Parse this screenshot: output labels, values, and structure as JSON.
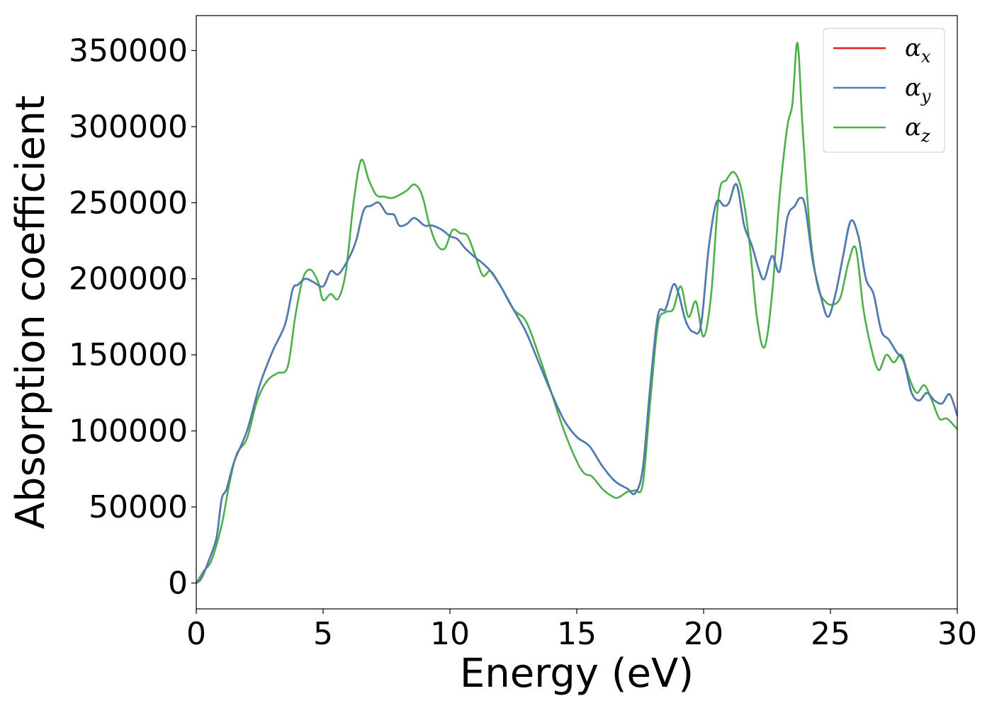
{
  "chart_data": {
    "type": "line",
    "xlabel": "Energy (eV)",
    "ylabel": "Absorption coefficient",
    "xlim": [
      0,
      30
    ],
    "ylim": [
      -17000,
      373000
    ],
    "xticks": [
      0,
      5,
      10,
      15,
      20,
      25,
      30
    ],
    "yticks": [
      0,
      50000,
      100000,
      150000,
      200000,
      250000,
      300000,
      350000
    ],
    "grid": false,
    "legend_position": "top-right",
    "series": [
      {
        "name": "αx",
        "label_base": "α",
        "label_sub": "x",
        "color": "#e41a1c",
        "x": [
          0,
          0.2,
          0.5,
          0.8,
          1.0,
          1.2,
          1.5,
          2.0,
          2.5,
          3.0,
          3.5,
          3.8,
          4.0,
          4.3,
          4.6,
          5.0,
          5.3,
          5.6,
          6.0,
          6.3,
          6.6,
          6.9,
          7.2,
          7.5,
          7.8,
          8.0,
          8.3,
          8.6,
          9.0,
          9.3,
          9.7,
          10.0,
          10.3,
          10.6,
          11.0,
          11.3,
          11.6,
          12.0,
          12.5,
          13.0,
          13.5,
          14.0,
          14.5,
          15.0,
          15.5,
          16.0,
          16.5,
          17.0,
          17.3,
          17.6,
          17.9,
          18.2,
          18.5,
          18.8,
          19.0,
          19.3,
          19.6,
          19.9,
          20.2,
          20.5,
          20.8,
          21.0,
          21.3,
          21.6,
          21.9,
          22.2,
          22.4,
          22.7,
          23.0,
          23.3,
          23.6,
          23.8,
          24.0,
          24.3,
          24.6,
          24.9,
          25.2,
          25.5,
          25.8,
          26.1,
          26.4,
          26.7,
          27.0,
          27.3,
          27.6,
          27.9,
          28.2,
          28.5,
          28.8,
          29.1,
          29.4,
          29.7,
          30.0
        ],
        "y": [
          0,
          3000,
          15000,
          30000,
          55000,
          62000,
          80000,
          100000,
          130000,
          152000,
          170000,
          193000,
          196000,
          200000,
          198000,
          195000,
          205000,
          203000,
          213000,
          225000,
          245000,
          248000,
          250000,
          243000,
          242000,
          235000,
          236000,
          240000,
          235000,
          235000,
          232000,
          228000,
          226000,
          220000,
          214000,
          210000,
          205000,
          195000,
          180000,
          165000,
          145000,
          125000,
          107000,
          96000,
          90000,
          77000,
          67000,
          62000,
          59000,
          75000,
          130000,
          176000,
          180000,
          196000,
          191000,
          172000,
          165000,
          170000,
          220000,
          250000,
          248000,
          250000,
          262000,
          235000,
          222000,
          205000,
          200000,
          215000,
          205000,
          240000,
          248000,
          253000,
          248000,
          212000,
          190000,
          175000,
          190000,
          215000,
          238000,
          228000,
          200000,
          190000,
          166000,
          160000,
          152000,
          145000,
          125000,
          120000,
          125000,
          120000,
          118000,
          124000,
          110000
        ]
      },
      {
        "name": "αy",
        "label_base": "α",
        "label_sub": "y",
        "color": "#4a7fb5",
        "x": [
          0,
          0.2,
          0.5,
          0.8,
          1.0,
          1.2,
          1.5,
          2.0,
          2.5,
          3.0,
          3.5,
          3.8,
          4.0,
          4.3,
          4.6,
          5.0,
          5.3,
          5.6,
          6.0,
          6.3,
          6.6,
          6.9,
          7.2,
          7.5,
          7.8,
          8.0,
          8.3,
          8.6,
          9.0,
          9.3,
          9.7,
          10.0,
          10.3,
          10.6,
          11.0,
          11.3,
          11.6,
          12.0,
          12.5,
          13.0,
          13.5,
          14.0,
          14.5,
          15.0,
          15.5,
          16.0,
          16.5,
          17.0,
          17.3,
          17.6,
          17.9,
          18.2,
          18.5,
          18.8,
          19.0,
          19.3,
          19.6,
          19.9,
          20.2,
          20.5,
          20.8,
          21.0,
          21.3,
          21.6,
          21.9,
          22.2,
          22.4,
          22.7,
          23.0,
          23.3,
          23.6,
          23.8,
          24.0,
          24.3,
          24.6,
          24.9,
          25.2,
          25.5,
          25.8,
          26.1,
          26.4,
          26.7,
          27.0,
          27.3,
          27.6,
          27.9,
          28.2,
          28.5,
          28.8,
          29.1,
          29.4,
          29.7,
          30.0
        ],
        "y": [
          0,
          3000,
          15000,
          30000,
          55000,
          62000,
          80000,
          100000,
          130000,
          152000,
          170000,
          193000,
          196000,
          200000,
          198000,
          195000,
          205000,
          203000,
          213000,
          225000,
          245000,
          248000,
          250000,
          243000,
          242000,
          235000,
          236000,
          240000,
          235000,
          235000,
          232000,
          228000,
          226000,
          220000,
          214000,
          210000,
          205000,
          195000,
          180000,
          165000,
          145000,
          125000,
          107000,
          96000,
          90000,
          77000,
          67000,
          62000,
          59000,
          75000,
          130000,
          176000,
          180000,
          196000,
          191000,
          172000,
          165000,
          170000,
          220000,
          250000,
          248000,
          250000,
          262000,
          235000,
          222000,
          205000,
          200000,
          215000,
          205000,
          240000,
          248000,
          253000,
          248000,
          212000,
          190000,
          175000,
          190000,
          215000,
          238000,
          228000,
          200000,
          190000,
          166000,
          160000,
          152000,
          145000,
          125000,
          120000,
          125000,
          120000,
          118000,
          124000,
          110000
        ]
      },
      {
        "name": "αz",
        "label_base": "α",
        "label_sub": "z",
        "color": "#4daf4a",
        "x": [
          0,
          0.3,
          0.6,
          1.0,
          1.3,
          1.6,
          2.0,
          2.4,
          2.8,
          3.2,
          3.6,
          3.9,
          4.2,
          4.5,
          4.8,
          5.0,
          5.3,
          5.6,
          5.9,
          6.2,
          6.5,
          6.8,
          7.1,
          7.4,
          7.7,
          8.0,
          8.3,
          8.6,
          8.9,
          9.2,
          9.5,
          9.8,
          10.1,
          10.4,
          10.7,
          11.0,
          11.3,
          11.6,
          12.0,
          12.5,
          13.0,
          13.5,
          14.0,
          14.5,
          15.0,
          15.3,
          15.6,
          16.0,
          16.3,
          16.6,
          17.0,
          17.3,
          17.6,
          17.9,
          18.2,
          18.5,
          18.8,
          19.1,
          19.4,
          19.7,
          20.0,
          20.3,
          20.6,
          20.9,
          21.2,
          21.5,
          21.8,
          22.1,
          22.4,
          22.7,
          23.0,
          23.3,
          23.5,
          23.7,
          23.9,
          24.2,
          24.5,
          24.8,
          25.1,
          25.4,
          25.7,
          26.0,
          26.3,
          26.6,
          26.9,
          27.2,
          27.5,
          27.8,
          28.1,
          28.4,
          28.7,
          29.0,
          29.3,
          29.6,
          30.0
        ],
        "y": [
          0,
          8000,
          15000,
          38000,
          65000,
          85000,
          95000,
          120000,
          133000,
          138000,
          142000,
          175000,
          200000,
          206000,
          198000,
          186000,
          190000,
          187000,
          205000,
          250000,
          278000,
          265000,
          255000,
          254000,
          253000,
          255000,
          258000,
          262000,
          255000,
          235000,
          222000,
          220000,
          232000,
          230000,
          228000,
          215000,
          202000,
          205000,
          195000,
          180000,
          172000,
          150000,
          125000,
          100000,
          80000,
          72000,
          70000,
          62000,
          58000,
          56000,
          60000,
          61000,
          65000,
          120000,
          170000,
          178000,
          180000,
          195000,
          175000,
          185000,
          162000,
          190000,
          255000,
          265000,
          270000,
          258000,
          225000,
          175000,
          155000,
          190000,
          255000,
          300000,
          315000,
          355000,
          300000,
          230000,
          195000,
          185000,
          183000,
          188000,
          210000,
          220000,
          180000,
          155000,
          140000,
          150000,
          145000,
          150000,
          135000,
          125000,
          130000,
          120000,
          108000,
          108000,
          101000
        ]
      }
    ]
  }
}
